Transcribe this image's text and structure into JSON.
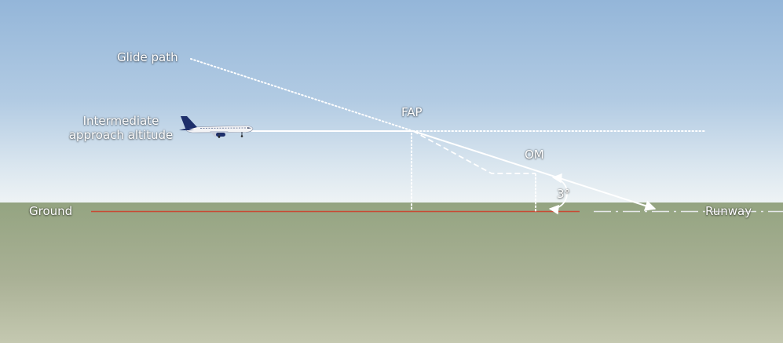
{
  "labels": {
    "glide_path": "Glide path",
    "intermediate_line1": "Intermediate",
    "intermediate_line2": "approach altitude",
    "fap": "FAP",
    "om": "OM",
    "angle": "3°",
    "ground": "Ground",
    "runway": "Runway"
  },
  "colors": {
    "sky_top": "#94b6d9",
    "sky_horizon": "#eef3f5",
    "ground_top": "#94a481",
    "ground_bottom": "#c4c8b0",
    "ground_line": "#c84a34",
    "path_white": "#ffffff",
    "aircraft_body": "#f3f3f5",
    "aircraft_tail": "#1e2f6b"
  },
  "icons": {
    "aircraft": "airliner-icon"
  }
}
